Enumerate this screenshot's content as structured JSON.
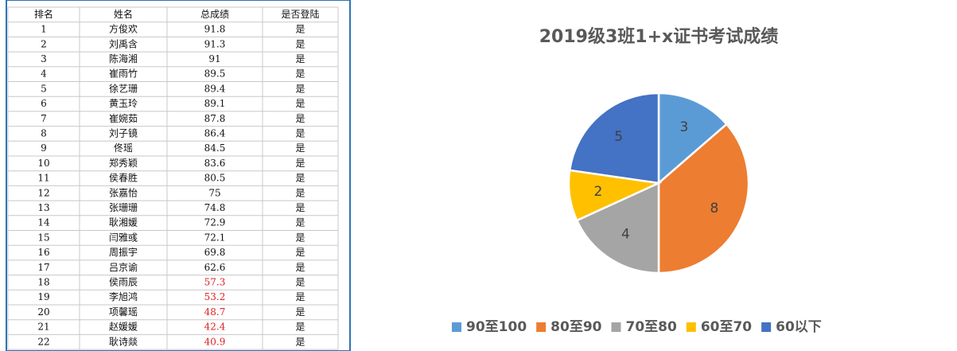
{
  "table": {
    "header": [
      "排名",
      "姓名",
      "总成绩",
      "是否登陆"
    ],
    "rows": [
      [
        "1",
        "方俊欢",
        "91.8",
        "是"
      ],
      [
        "2",
        "刘禹含",
        "91.3",
        "是"
      ],
      [
        "3",
        "陈海湘",
        "91",
        "是"
      ],
      [
        "4",
        "崔雨竹",
        "89.5",
        "是"
      ],
      [
        "5",
        "徐艺珊",
        "89.4",
        "是"
      ],
      [
        "6",
        "黄玉玲",
        "89.1",
        "是"
      ],
      [
        "7",
        "崔婉茹",
        "87.8",
        "是"
      ],
      [
        "8",
        "刘子镜",
        "86.4",
        "是"
      ],
      [
        "9",
        "佟瑶",
        "84.5",
        "是"
      ],
      [
        "10",
        "郑秀颖",
        "83.6",
        "是"
      ],
      [
        "11",
        "侯春胜",
        "80.5",
        "是"
      ],
      [
        "12",
        "张嘉怡",
        "75",
        "是"
      ],
      [
        "13",
        "张珊珊",
        "74.8",
        "是"
      ],
      [
        "14",
        "耿湘媛",
        "72.9",
        "是"
      ],
      [
        "15",
        "闫雅彧",
        "72.1",
        "是"
      ],
      [
        "16",
        "周振宇",
        "69.8",
        "是"
      ],
      [
        "17",
        "吕京谕",
        "62.6",
        "是"
      ],
      [
        "18",
        "侯雨辰",
        "57.3",
        "是"
      ],
      [
        "19",
        "李旭鸿",
        "53.2",
        "是"
      ],
      [
        "20",
        "项馨瑶",
        "48.7",
        "是"
      ],
      [
        "21",
        "赵媛媛",
        "42.4",
        "是"
      ],
      [
        "22",
        "耿诗燚",
        "40.9",
        "是"
      ]
    ]
  },
  "chart_data": {
    "type": "pie",
    "title": "2019级3班1+x证书考试成绩",
    "categories": [
      "90至100",
      "80至90",
      "70至80",
      "60至70",
      "60以下"
    ],
    "values": [
      3,
      8,
      4,
      2,
      5
    ],
    "colors": [
      "#5b9bd5",
      "#ed7d31",
      "#a5a5a5",
      "#ffc000",
      "#4472c4"
    ],
    "legend": "bottom"
  }
}
